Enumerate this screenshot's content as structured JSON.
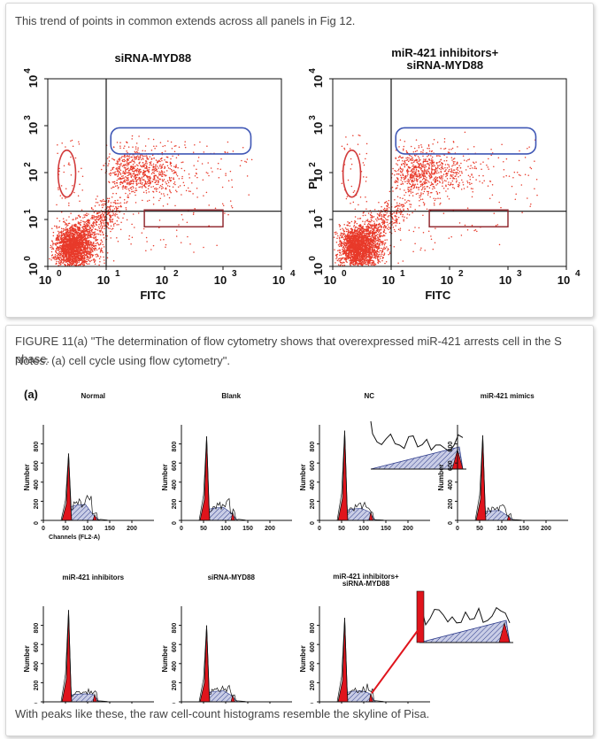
{
  "card1": {
    "text": "This trend of points in common extends across all panels in Fig 12."
  },
  "card2": {
    "caption_line1": "FIGURE 11(a) \"The determination of flow cytometry shows that overexpressed miR-421 arrests cell in the S phase.",
    "caption_line2": "Notes: (a) cell cycle using flow cytometry\".",
    "footer": "With peaks like these, the raw cell-count histograms resemble the skyline of Pisa."
  },
  "colors": {
    "dot": "#e83a2a",
    "blue_box": "#3f57b5",
    "red_oval": "#d23b3b",
    "dark_red_box": "#8c1f26",
    "peak_fill": "#e0141c",
    "hatch": "#2f3d8c"
  },
  "chart_data": [
    {
      "type": "scatter",
      "title": "siRNA-MYD88",
      "xlabel": "FITC",
      "ylabel": "",
      "xscale": "log",
      "yscale": "log",
      "xlim": [
        1,
        10000
      ],
      "ylim": [
        1,
        10000
      ],
      "xticks": [
        "10",
        "10",
        "10",
        "10",
        "10"
      ],
      "xtick_exp": [
        "0",
        "1",
        "2",
        "3",
        "4"
      ],
      "yticks": [
        "10",
        "10",
        "10",
        "10",
        "10"
      ],
      "ytick_exp": [
        "0",
        "1",
        "2",
        "3",
        "4"
      ],
      "quadrant_x": 10,
      "quadrant_y": 15,
      "gates": [
        {
          "shape": "ellipse",
          "x_range": [
            1.5,
            3.0
          ],
          "y_range": [
            30,
            300
          ]
        },
        {
          "shape": "rounded-rect",
          "x_range": [
            12,
            3000
          ],
          "y_range": [
            250,
            900
          ]
        },
        {
          "shape": "rect",
          "x_range": [
            45,
            1000
          ],
          "y_range": [
            7,
            16
          ]
        }
      ]
    },
    {
      "type": "scatter",
      "title": "miR-421 inhibitors+",
      "title2": "siRNA-MYD88",
      "xlabel": "FITC",
      "ylabel": "PI",
      "xscale": "log",
      "yscale": "log",
      "xlim": [
        1,
        10000
      ],
      "ylim": [
        1,
        10000
      ],
      "xticks": [
        "10",
        "10",
        "10",
        "10",
        "10"
      ],
      "xtick_exp": [
        "0",
        "1",
        "2",
        "3",
        "4"
      ],
      "yticks": [
        "10",
        "10",
        "10",
        "10",
        "10"
      ],
      "ytick_exp": [
        "0",
        "1",
        "2",
        "3",
        "4"
      ],
      "quadrant_x": 10,
      "quadrant_y": 15,
      "gates": [
        {
          "shape": "ellipse",
          "x_range": [
            1.5,
            3.0
          ],
          "y_range": [
            30,
            300
          ]
        },
        {
          "shape": "rounded-rect",
          "x_range": [
            12,
            3000
          ],
          "y_range": [
            250,
            900
          ]
        },
        {
          "shape": "rect",
          "x_range": [
            45,
            1000
          ],
          "y_range": [
            7,
            16
          ]
        }
      ]
    }
  ],
  "histograms": {
    "panel_label": "(a)",
    "ylabel": "Number",
    "xlabel_first": "Channels (FL2-A)",
    "xticks": [
      "0",
      "50",
      "100",
      "150",
      "200"
    ],
    "yticks": [
      "0",
      "200",
      "400",
      "600",
      "800"
    ],
    "xlim": [
      0,
      250
    ],
    "ylim": [
      0,
      1000
    ],
    "panels": [
      {
        "title": "Normal",
        "peak": 700,
        "s_level": 160,
        "g2": 60,
        "inset": false
      },
      {
        "title": "Blank",
        "peak": 880,
        "s_level": 130,
        "g2": 80,
        "inset": false
      },
      {
        "title": "NC",
        "peak": 940,
        "s_level": 120,
        "g2": 90,
        "inset": true
      },
      {
        "title": "miR-421 mimics",
        "peak": 890,
        "s_level": 100,
        "g2": 50,
        "inset": false
      },
      {
        "title": "miR-421 inhibitors",
        "peak": 960,
        "s_level": 80,
        "g2": 80,
        "inset": false
      },
      {
        "title": "siRNA-MYD88",
        "peak": 800,
        "s_level": 110,
        "g2": 70,
        "inset": false
      },
      {
        "title": "miR-421 inhibitors+",
        "title2": "siRNA-MYD88",
        "peak": 880,
        "s_level": 110,
        "g2": 90,
        "inset": true
      }
    ]
  }
}
